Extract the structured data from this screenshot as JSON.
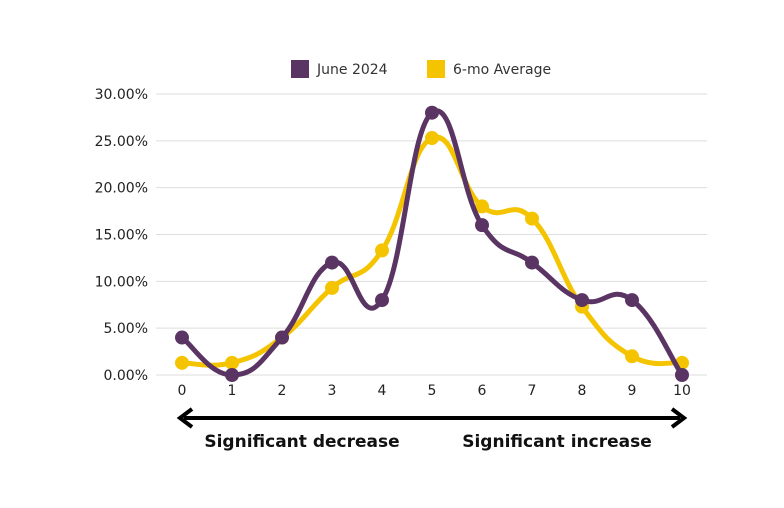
{
  "chart_data": {
    "type": "line",
    "x": [
      0,
      1,
      2,
      3,
      4,
      5,
      6,
      7,
      8,
      9,
      10
    ],
    "series": [
      {
        "name": "June 2024",
        "color": "#5a3564",
        "values": [
          4.0,
          0.0,
          4.0,
          12.0,
          8.0,
          28.0,
          16.0,
          12.0,
          8.0,
          8.0,
          0.0
        ]
      },
      {
        "name": "6-mo Average",
        "color": "#f5c400",
        "values": [
          1.3,
          1.3,
          4.0,
          9.3,
          13.3,
          25.3,
          18.0,
          16.7,
          7.3,
          2.0,
          1.3
        ]
      }
    ],
    "y_ticks": [
      "0.00%",
      "5.00%",
      "10.00%",
      "15.00%",
      "20.00%",
      "25.00%",
      "30.00%"
    ],
    "x_ticks": [
      "0",
      "1",
      "2",
      "3",
      "4",
      "5",
      "6",
      "7",
      "8",
      "9",
      "10"
    ],
    "ylim": [
      0,
      30
    ],
    "xlim": [
      0,
      10
    ],
    "grid": true,
    "legend_position": "top-center",
    "annotations": {
      "left_label": "Significant decrease",
      "right_label": "Significant increase"
    }
  }
}
